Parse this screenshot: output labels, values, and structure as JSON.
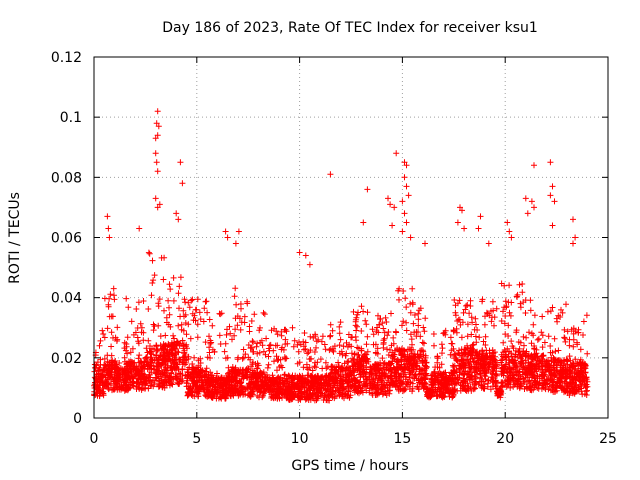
{
  "chart_data": {
    "type": "scatter",
    "title": "Day 186 of 2023, Rate Of TEC Index for receiver ksu1",
    "xlabel": "GPS time / hours",
    "ylabel": "ROTI / TECUs",
    "xlim": [
      0,
      25
    ],
    "ylim": [
      0,
      0.12
    ],
    "x_ticks": [
      0,
      5,
      10,
      15,
      20,
      25
    ],
    "x_tick_labels": [
      "0",
      "5",
      "10",
      "15",
      "20",
      "25"
    ],
    "y_ticks": [
      0,
      0.02,
      0.04,
      0.06,
      0.08,
      0.1,
      0.12
    ],
    "y_tick_labels": [
      "0",
      "0.02",
      "0.04",
      "0.06",
      "0.08",
      "0.1",
      "0.12"
    ],
    "grid": true,
    "marker": "+",
    "colors": {
      "series": "#ff0000",
      "grid": "#a0a0a0",
      "axis": "#000000"
    },
    "series": [
      {
        "notable_points": [
          {
            "x": 3.1,
            "y": 0.102
          },
          {
            "x": 3.05,
            "y": 0.098
          },
          {
            "x": 3.15,
            "y": 0.097
          },
          {
            "x": 3.0,
            "y": 0.093
          },
          {
            "x": 3.1,
            "y": 0.094
          },
          {
            "x": 3.0,
            "y": 0.088
          },
          {
            "x": 3.05,
            "y": 0.085
          },
          {
            "x": 4.2,
            "y": 0.085
          },
          {
            "x": 3.1,
            "y": 0.082
          },
          {
            "x": 4.3,
            "y": 0.078
          },
          {
            "x": 3.0,
            "y": 0.073
          },
          {
            "x": 3.2,
            "y": 0.071
          },
          {
            "x": 4.0,
            "y": 0.068
          },
          {
            "x": 4.1,
            "y": 0.066
          },
          {
            "x": 3.1,
            "y": 0.07
          },
          {
            "x": 2.2,
            "y": 0.063
          },
          {
            "x": 0.65,
            "y": 0.067
          },
          {
            "x": 0.7,
            "y": 0.063
          },
          {
            "x": 0.75,
            "y": 0.06
          },
          {
            "x": 6.4,
            "y": 0.062
          },
          {
            "x": 6.5,
            "y": 0.06
          },
          {
            "x": 7.05,
            "y": 0.062
          },
          {
            "x": 6.9,
            "y": 0.058
          },
          {
            "x": 10.0,
            "y": 0.055
          },
          {
            "x": 10.3,
            "y": 0.054
          },
          {
            "x": 10.5,
            "y": 0.051
          },
          {
            "x": 11.5,
            "y": 0.081
          },
          {
            "x": 13.3,
            "y": 0.076
          },
          {
            "x": 13.1,
            "y": 0.065
          },
          {
            "x": 14.3,
            "y": 0.073
          },
          {
            "x": 14.4,
            "y": 0.071
          },
          {
            "x": 14.7,
            "y": 0.088
          },
          {
            "x": 14.6,
            "y": 0.07
          },
          {
            "x": 14.5,
            "y": 0.064
          },
          {
            "x": 15.1,
            "y": 0.085
          },
          {
            "x": 15.2,
            "y": 0.084
          },
          {
            "x": 15.1,
            "y": 0.08
          },
          {
            "x": 15.2,
            "y": 0.077
          },
          {
            "x": 15.3,
            "y": 0.074
          },
          {
            "x": 15.0,
            "y": 0.072
          },
          {
            "x": 15.1,
            "y": 0.068
          },
          {
            "x": 15.2,
            "y": 0.065
          },
          {
            "x": 15.0,
            "y": 0.062
          },
          {
            "x": 15.4,
            "y": 0.06
          },
          {
            "x": 16.1,
            "y": 0.058
          },
          {
            "x": 17.8,
            "y": 0.07
          },
          {
            "x": 17.9,
            "y": 0.069
          },
          {
            "x": 17.7,
            "y": 0.065
          },
          {
            "x": 18.0,
            "y": 0.063
          },
          {
            "x": 18.8,
            "y": 0.067
          },
          {
            "x": 18.7,
            "y": 0.063
          },
          {
            "x": 19.2,
            "y": 0.058
          },
          {
            "x": 20.1,
            "y": 0.065
          },
          {
            "x": 20.2,
            "y": 0.062
          },
          {
            "x": 20.3,
            "y": 0.06
          },
          {
            "x": 21.0,
            "y": 0.073
          },
          {
            "x": 21.1,
            "y": 0.068
          },
          {
            "x": 21.3,
            "y": 0.072
          },
          {
            "x": 21.4,
            "y": 0.07
          },
          {
            "x": 21.4,
            "y": 0.084
          },
          {
            "x": 22.2,
            "y": 0.085
          },
          {
            "x": 22.3,
            "y": 0.077
          },
          {
            "x": 22.2,
            "y": 0.074
          },
          {
            "x": 22.4,
            "y": 0.072
          },
          {
            "x": 22.3,
            "y": 0.064
          },
          {
            "x": 23.3,
            "y": 0.066
          },
          {
            "x": 23.4,
            "y": 0.06
          },
          {
            "x": 23.3,
            "y": 0.058
          }
        ],
        "density_profile": [
          {
            "x_from": 0,
            "x_to": 0.5,
            "y_min": 0.004,
            "y_mid": 0.012,
            "y_max": 0.03
          },
          {
            "x_from": 0.5,
            "x_to": 1.0,
            "y_min": 0.006,
            "y_mid": 0.014,
            "y_max": 0.045
          },
          {
            "x_from": 1.0,
            "x_to": 1.5,
            "y_min": 0.006,
            "y_mid": 0.013,
            "y_max": 0.032
          },
          {
            "x_from": 1.5,
            "x_to": 2.5,
            "y_min": 0.006,
            "y_mid": 0.014,
            "y_max": 0.04
          },
          {
            "x_from": 2.5,
            "x_to": 3.5,
            "y_min": 0.005,
            "y_mid": 0.017,
            "y_max": 0.055
          },
          {
            "x_from": 3.5,
            "x_to": 4.5,
            "y_min": 0.006,
            "y_mid": 0.018,
            "y_max": 0.048
          },
          {
            "x_from": 4.5,
            "x_to": 5.5,
            "y_min": 0.004,
            "y_mid": 0.012,
            "y_max": 0.04
          },
          {
            "x_from": 5.5,
            "x_to": 6.5,
            "y_min": 0.004,
            "y_mid": 0.01,
            "y_max": 0.035
          },
          {
            "x_from": 6.5,
            "x_to": 7.5,
            "y_min": 0.004,
            "y_mid": 0.012,
            "y_max": 0.045
          },
          {
            "x_from": 7.5,
            "x_to": 8.5,
            "y_min": 0.004,
            "y_mid": 0.011,
            "y_max": 0.035
          },
          {
            "x_from": 8.5,
            "x_to": 9.4,
            "y_min": 0.004,
            "y_mid": 0.01,
            "y_max": 0.03
          },
          {
            "x_from": 9.4,
            "x_to": 9.6,
            "y_min": 0.004,
            "y_mid": 0.008,
            "y_max": 0.015
          },
          {
            "x_from": 9.6,
            "x_to": 10.5,
            "y_min": 0.003,
            "y_mid": 0.01,
            "y_max": 0.03
          },
          {
            "x_from": 10.5,
            "x_to": 11.5,
            "y_min": 0.003,
            "y_mid": 0.01,
            "y_max": 0.028
          },
          {
            "x_from": 11.5,
            "x_to": 12.5,
            "y_min": 0.003,
            "y_mid": 0.012,
            "y_max": 0.032
          },
          {
            "x_from": 12.5,
            "x_to": 13.5,
            "y_min": 0.004,
            "y_mid": 0.014,
            "y_max": 0.04
          },
          {
            "x_from": 13.5,
            "x_to": 14.5,
            "y_min": 0.004,
            "y_mid": 0.013,
            "y_max": 0.035
          },
          {
            "x_from": 14.5,
            "x_to": 15.5,
            "y_min": 0.004,
            "y_mid": 0.016,
            "y_max": 0.045
          },
          {
            "x_from": 15.5,
            "x_to": 16.2,
            "y_min": 0.005,
            "y_mid": 0.016,
            "y_max": 0.04
          },
          {
            "x_from": 16.2,
            "x_to": 16.4,
            "y_min": 0.006,
            "y_mid": 0.008,
            "y_max": 0.01
          },
          {
            "x_from": 16.4,
            "x_to": 17.5,
            "y_min": 0.004,
            "y_mid": 0.011,
            "y_max": 0.03
          },
          {
            "x_from": 17.5,
            "x_to": 18.5,
            "y_min": 0.004,
            "y_mid": 0.016,
            "y_max": 0.042
          },
          {
            "x_from": 18.5,
            "x_to": 19.6,
            "y_min": 0.005,
            "y_mid": 0.016,
            "y_max": 0.04
          },
          {
            "x_from": 19.6,
            "x_to": 19.8,
            "y_min": 0.006,
            "y_mid": 0.008,
            "y_max": 0.01
          },
          {
            "x_from": 19.8,
            "x_to": 21.0,
            "y_min": 0.005,
            "y_mid": 0.016,
            "y_max": 0.045
          },
          {
            "x_from": 21.0,
            "x_to": 22.0,
            "y_min": 0.005,
            "y_mid": 0.015,
            "y_max": 0.04
          },
          {
            "x_from": 22.0,
            "x_to": 23.0,
            "y_min": 0.005,
            "y_mid": 0.014,
            "y_max": 0.038
          },
          {
            "x_from": 23.0,
            "x_to": 24.0,
            "y_min": 0.004,
            "y_mid": 0.013,
            "y_max": 0.035
          }
        ]
      }
    ]
  }
}
